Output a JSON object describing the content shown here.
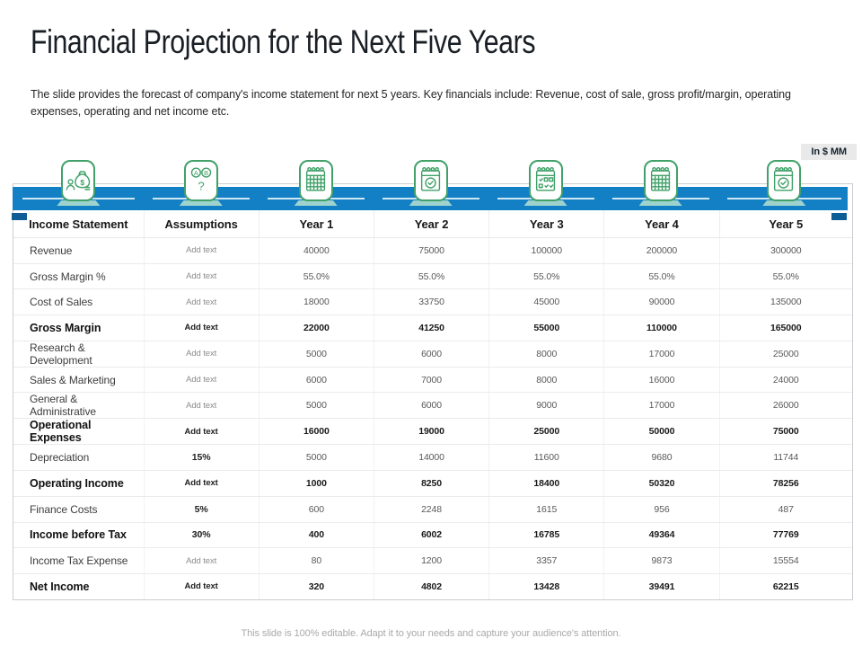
{
  "title": "Financial Projection for the Next Five Years",
  "subtitle": "The slide provides the forecast of company's income statement for next 5 years. Key financials include: Revenue, cost of sale, gross profit/margin, operating expenses, operating and net income etc.",
  "unit_badge": "In $ MM",
  "footer": "This slide is 100% editable. Adapt it to your needs and capture your audience's attention.",
  "colors": {
    "ribbon_blue": "#1380C5",
    "ribbon_fold": "#0D5E97",
    "icon_green": "#41A169",
    "icon_shadow": "#AEDCCD"
  },
  "header_icons": [
    {
      "name": "money-bag-icon",
      "column": "Income Statement"
    },
    {
      "name": "ab-options-icon",
      "column": "Assumptions"
    },
    {
      "name": "calendar-grid-icon",
      "column": "Year 1"
    },
    {
      "name": "calendar-check-icon",
      "column": "Year 2"
    },
    {
      "name": "calendar-checklist-icon",
      "column": "Year 3"
    },
    {
      "name": "calendar-grid-icon",
      "column": "Year 4"
    },
    {
      "name": "calendar-check-icon",
      "column": "Year 5"
    }
  ],
  "table": {
    "columns": [
      "Income Statement",
      "Assumptions",
      "Year 1",
      "Year 2",
      "Year 3",
      "Year 4",
      "Year 5"
    ],
    "rows": [
      {
        "label": "Revenue",
        "bold": false,
        "assumption": "Add text",
        "assumption_bold": false,
        "values": [
          "40000",
          "75000",
          "100000",
          "200000",
          "300000"
        ]
      },
      {
        "label": "Gross Margin %",
        "bold": false,
        "assumption": "Add text",
        "assumption_bold": false,
        "values": [
          "55.0%",
          "55.0%",
          "55.0%",
          "55.0%",
          "55.0%"
        ]
      },
      {
        "label": "Cost of Sales",
        "bold": false,
        "assumption": "Add text",
        "assumption_bold": false,
        "values": [
          "18000",
          "33750",
          "45000",
          "90000",
          "135000"
        ]
      },
      {
        "label": "Gross Margin",
        "bold": true,
        "assumption": "Add text",
        "assumption_bold": true,
        "values": [
          "22000",
          "41250",
          "55000",
          "110000",
          "165000"
        ]
      },
      {
        "label": "Research & Development",
        "bold": false,
        "assumption": "Add text",
        "assumption_bold": false,
        "values": [
          "5000",
          "6000",
          "8000",
          "17000",
          "25000"
        ]
      },
      {
        "label": "Sales & Marketing",
        "bold": false,
        "assumption": "Add text",
        "assumption_bold": false,
        "values": [
          "6000",
          "7000",
          "8000",
          "16000",
          "24000"
        ]
      },
      {
        "label": "General & Administrative",
        "bold": false,
        "assumption": "Add text",
        "assumption_bold": false,
        "values": [
          "5000",
          "6000",
          "9000",
          "17000",
          "26000"
        ]
      },
      {
        "label": "Operational Expenses",
        "bold": true,
        "assumption": "Add text",
        "assumption_bold": true,
        "values": [
          "16000",
          "19000",
          "25000",
          "50000",
          "75000"
        ]
      },
      {
        "label": "Depreciation",
        "bold": false,
        "assumption": "15%",
        "assumption_bold": true,
        "values": [
          "5000",
          "14000",
          "11600",
          "9680",
          "11744"
        ]
      },
      {
        "label": "Operating Income",
        "bold": true,
        "assumption": "Add text",
        "assumption_bold": true,
        "values": [
          "1000",
          "8250",
          "18400",
          "50320",
          "78256"
        ]
      },
      {
        "label": "Finance Costs",
        "bold": false,
        "assumption": "5%",
        "assumption_bold": true,
        "values": [
          "600",
          "2248",
          "1615",
          "956",
          "487"
        ]
      },
      {
        "label": "Income before Tax",
        "bold": true,
        "assumption": "30%",
        "assumption_bold": true,
        "values": [
          "400",
          "6002",
          "16785",
          "49364",
          "77769"
        ]
      },
      {
        "label": "Income Tax Expense",
        "bold": false,
        "assumption": "Add text",
        "assumption_bold": false,
        "values": [
          "80",
          "1200",
          "3357",
          "9873",
          "15554"
        ]
      },
      {
        "label": "Net Income",
        "bold": true,
        "assumption": "Add text",
        "assumption_bold": true,
        "values": [
          "320",
          "4802",
          "13428",
          "39491",
          "62215"
        ]
      }
    ]
  }
}
